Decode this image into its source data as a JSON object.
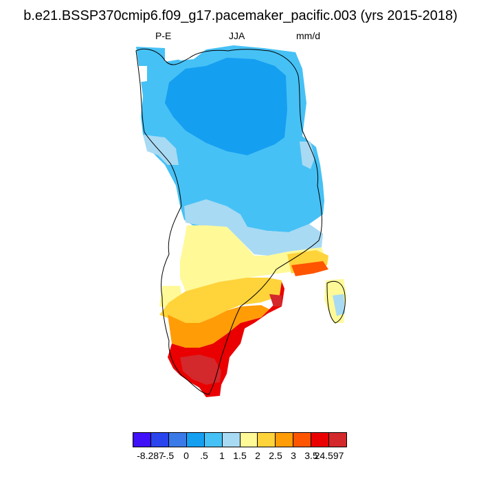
{
  "title": "b.e21.BSSP370cmip6.f09_g17.pacemaker_pacific.003 (yrs 2015-2018)",
  "left_label": "P-E",
  "center_label": "JJA",
  "right_label": "mm/d",
  "colorbar": {
    "colors": [
      "#3f10f8",
      "#2a44ee",
      "#3a7ae8",
      "#159ff1",
      "#46c1f5",
      "#a8daf3",
      "#fff998",
      "#ffd33a",
      "#ff9c06",
      "#ff5500",
      "#ea0000",
      "#d3282c"
    ],
    "labels": [
      "-8.287",
      "-.5",
      "0",
      ".5",
      "1",
      "1.5",
      "2",
      "2.5",
      "3",
      "3.5",
      "24.597"
    ]
  }
}
